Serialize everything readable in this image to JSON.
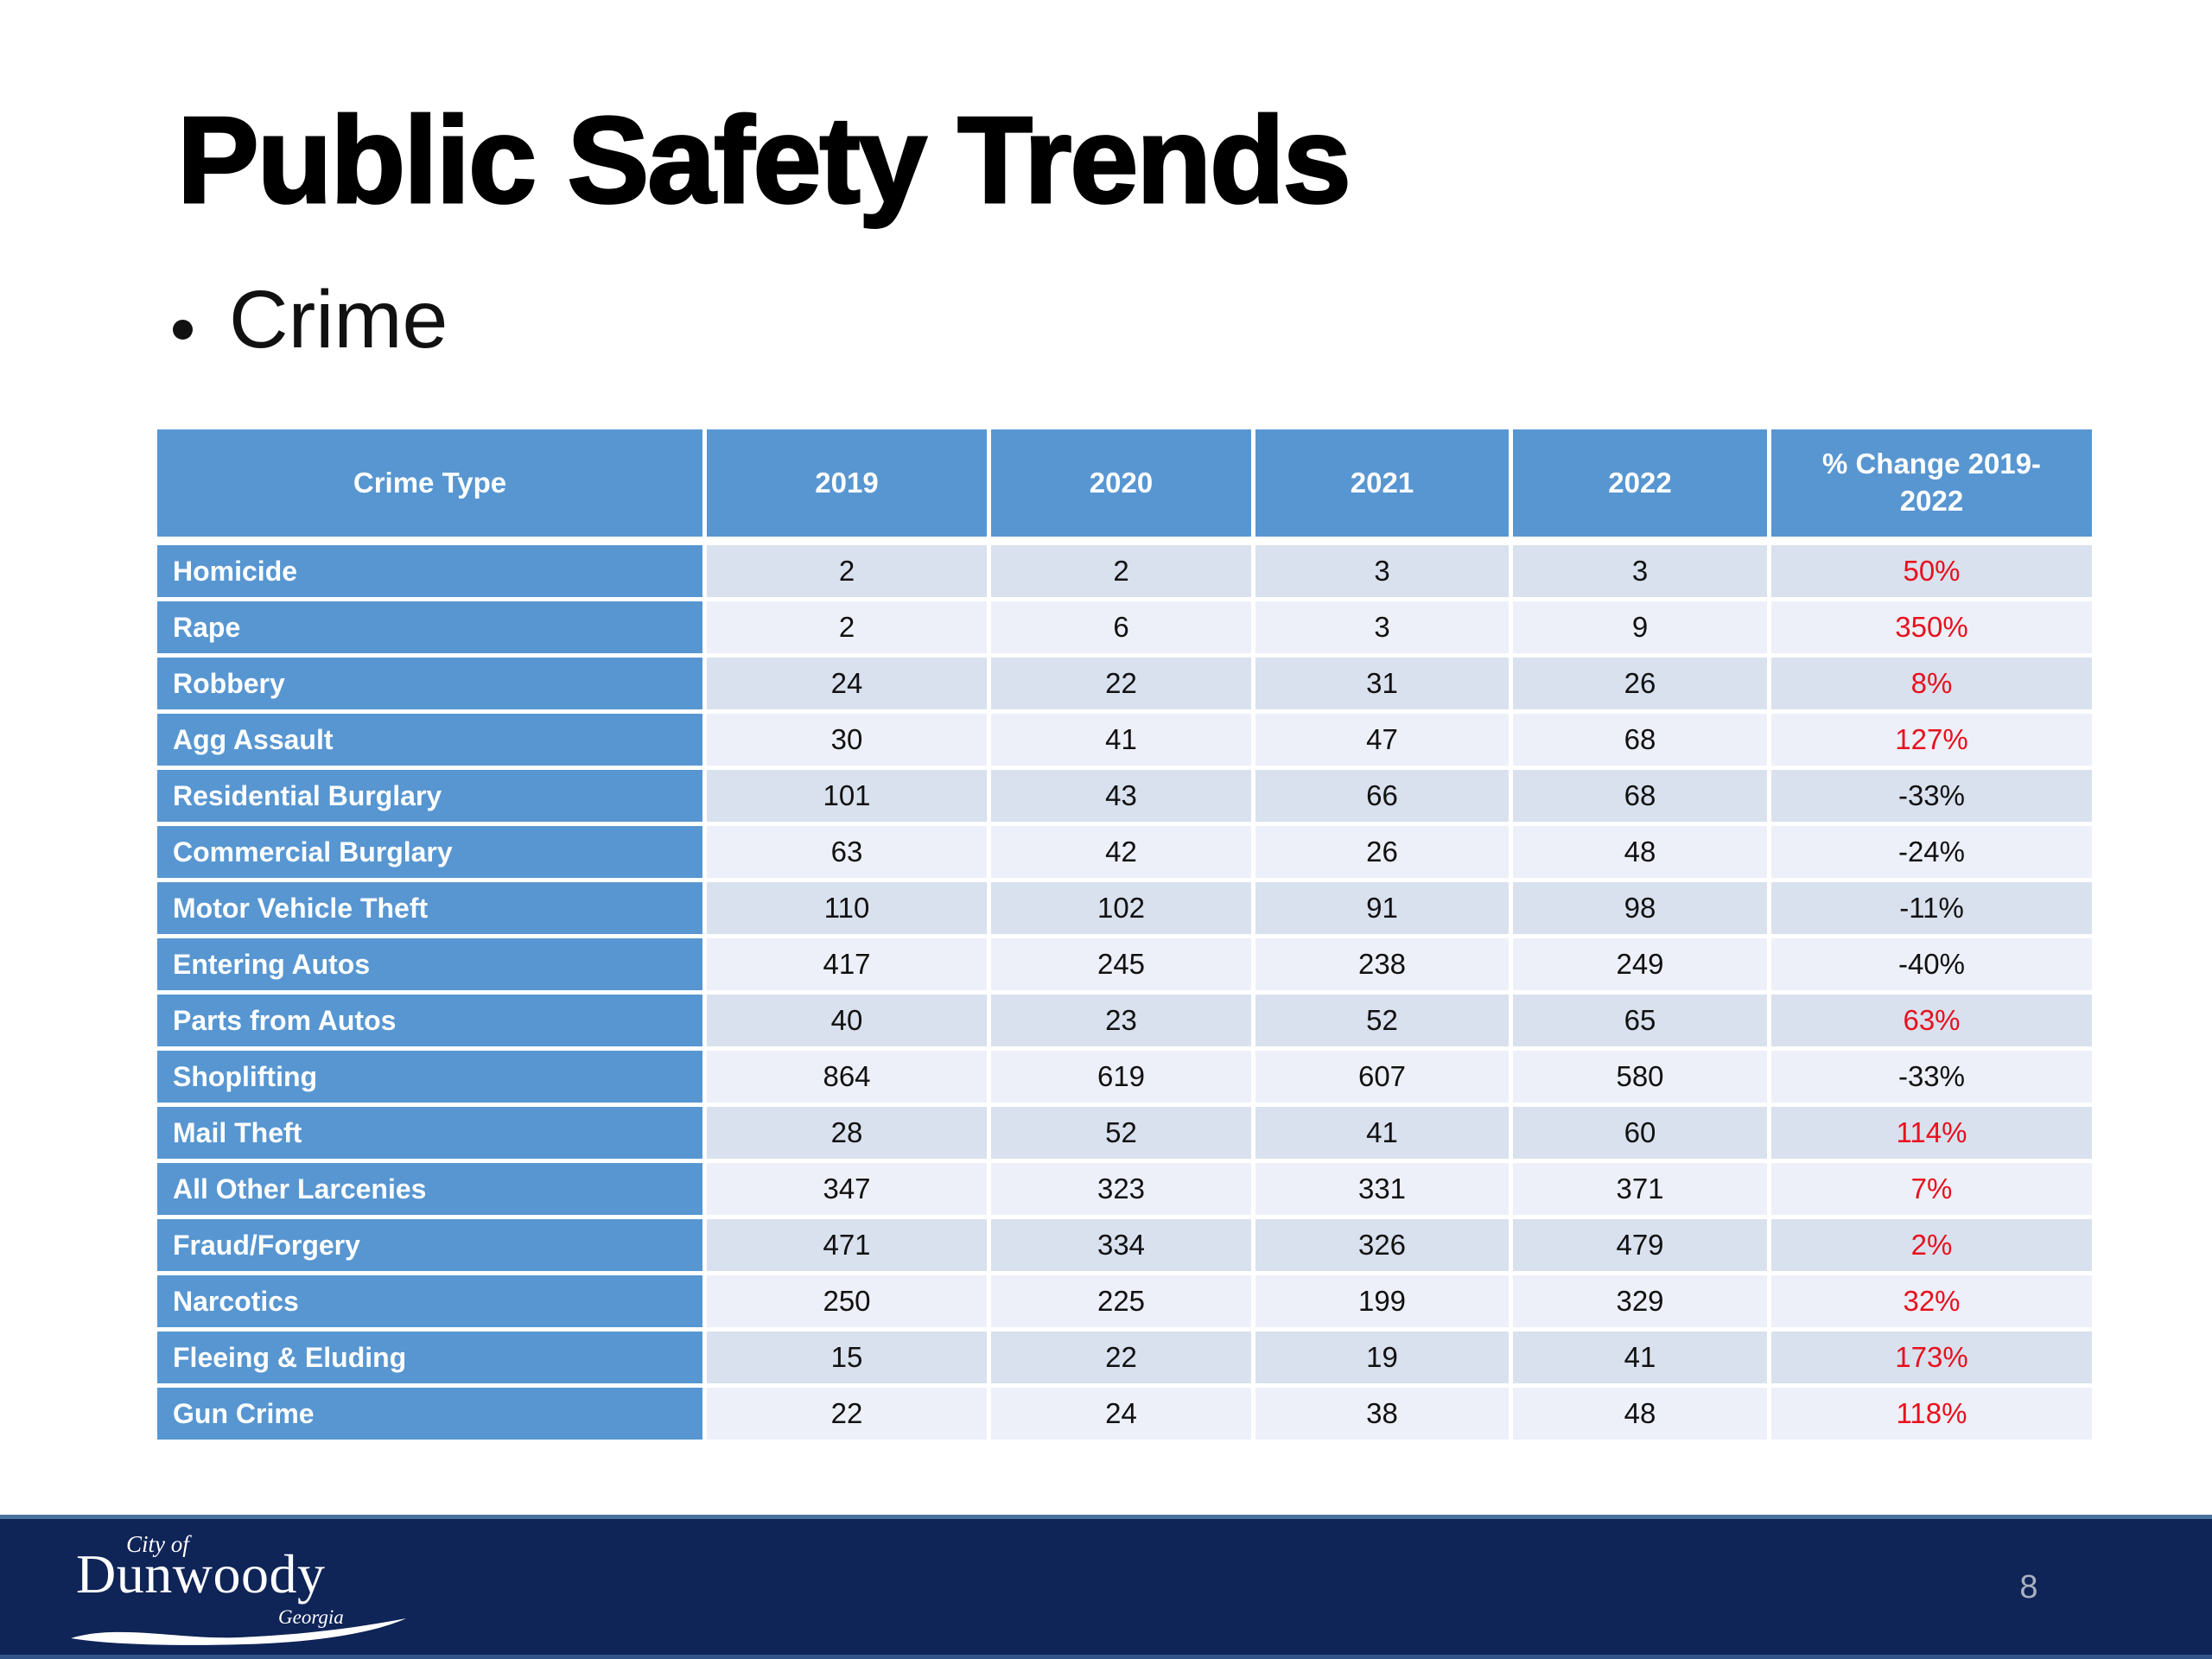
{
  "slide": {
    "title": "Public Safety Trends",
    "bullet": "Crime",
    "page_number": "8"
  },
  "table": {
    "headers": [
      "Crime Type",
      "2019",
      "2020",
      "2021",
      "2022",
      "% Change 2019-2022"
    ],
    "rows": [
      {
        "label": "Homicide",
        "values": [
          2,
          2,
          3,
          3
        ],
        "pct": "50%",
        "pct_color": "red"
      },
      {
        "label": "Rape",
        "values": [
          2,
          6,
          3,
          9
        ],
        "pct": "350%",
        "pct_color": "red"
      },
      {
        "label": "Robbery",
        "values": [
          24,
          22,
          31,
          26
        ],
        "pct": "8%",
        "pct_color": "red"
      },
      {
        "label": "Agg Assault",
        "values": [
          30,
          41,
          47,
          68
        ],
        "pct": "127%",
        "pct_color": "red"
      },
      {
        "label": "Residential Burglary",
        "values": [
          101,
          43,
          66,
          68
        ],
        "pct": "-33%",
        "pct_color": "black"
      },
      {
        "label": "Commercial Burglary",
        "values": [
          63,
          42,
          26,
          48
        ],
        "pct": "-24%",
        "pct_color": "black"
      },
      {
        "label": "Motor Vehicle Theft",
        "values": [
          110,
          102,
          91,
          98
        ],
        "pct": "-11%",
        "pct_color": "black"
      },
      {
        "label": "Entering Autos",
        "values": [
          417,
          245,
          238,
          249
        ],
        "pct": "-40%",
        "pct_color": "black"
      },
      {
        "label": "Parts from Autos",
        "values": [
          40,
          23,
          52,
          65
        ],
        "pct": "63%",
        "pct_color": "red"
      },
      {
        "label": "Shoplifting",
        "values": [
          864,
          619,
          607,
          580
        ],
        "pct": "-33%",
        "pct_color": "black"
      },
      {
        "label": "Mail Theft",
        "values": [
          28,
          52,
          41,
          60
        ],
        "pct": "114%",
        "pct_color": "red"
      },
      {
        "label": "All Other Larcenies",
        "values": [
          347,
          323,
          331,
          371
        ],
        "pct": "7%",
        "pct_color": "red"
      },
      {
        "label": "Fraud/Forgery",
        "values": [
          471,
          334,
          326,
          479
        ],
        "pct": "2%",
        "pct_color": "red"
      },
      {
        "label": "Narcotics",
        "values": [
          250,
          225,
          199,
          329
        ],
        "pct": "32%",
        "pct_color": "red"
      },
      {
        "label": "Fleeing & Eluding",
        "values": [
          15,
          22,
          19,
          41
        ],
        "pct": "173%",
        "pct_color": "red"
      },
      {
        "label": "Gun Crime",
        "values": [
          22,
          24,
          38,
          48
        ],
        "pct": "118%",
        "pct_color": "red"
      }
    ]
  },
  "footer": {
    "logo": {
      "city_of": "City of",
      "name": "Dunwoody",
      "state": "Georgia"
    }
  },
  "colors": {
    "header_blue": "#5796d1",
    "row_odd_bg": "#d9e1ee",
    "row_even_bg": "#edf0f8",
    "pct_positive_red": "#e8101e",
    "pct_negative_black": "#111111",
    "footer_navy": "#0f2457",
    "footer_top_line": "#49729e",
    "page_number_gray": "#a8b0bf"
  }
}
